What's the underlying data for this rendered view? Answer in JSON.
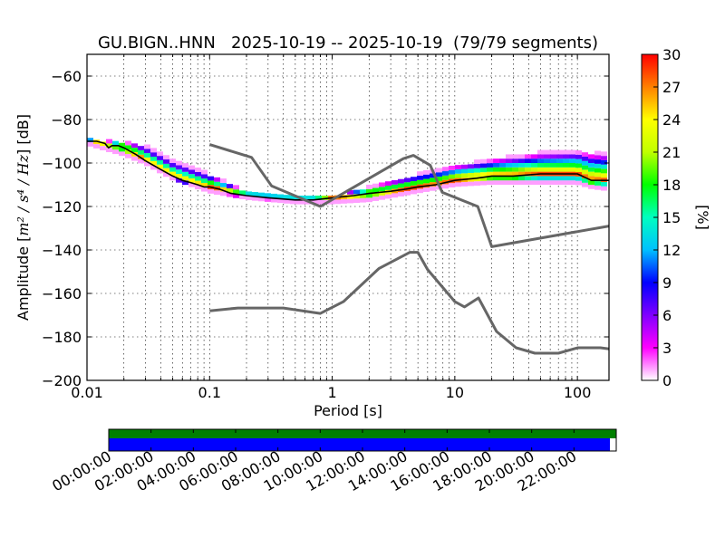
{
  "chart_data": [
    {
      "type": "heatmap",
      "title": "GU.BIGN..HNN   2025-10-19 -- 2025-10-19  (79/79 segments)",
      "xlabel": "Period [s]",
      "ylabel": "Amplitude [m²/s⁴/Hz] [dB]",
      "ylabel_parts": {
        "prefix": "Amplitude [",
        "math": "m² / s⁴ / Hz",
        "suffix": "] [dB]"
      },
      "xscale": "log",
      "xlim": [
        0.01,
        181
      ],
      "ylim": [
        -200,
        -50
      ],
      "xticks": [
        0.01,
        0.1,
        1,
        10,
        100
      ],
      "xtick_labels": [
        "0.01",
        "0.1",
        "1",
        "10",
        "100"
      ],
      "yticks": [
        -200,
        -180,
        -160,
        -140,
        -120,
        -100,
        -80,
        -60
      ],
      "ytick_labels": [
        "−200",
        "−180",
        "−160",
        "−140",
        "−120",
        "−100",
        "−80",
        "−60"
      ],
      "grid": true,
      "colorbar": {
        "label": "[%]",
        "range": [
          0,
          30
        ],
        "ticks": [
          0,
          3,
          6,
          9,
          12,
          15,
          18,
          21,
          24,
          27,
          30
        ],
        "tick_labels": [
          "0",
          "3",
          "6",
          "9",
          "12",
          "15",
          "18",
          "21",
          "24",
          "27",
          "30"
        ],
        "colormap_stops": [
          "#ffffff",
          "#ff00ff",
          "#8000ff",
          "#0000ff",
          "#00c0ff",
          "#00ffc0",
          "#00ff00",
          "#c0ff00",
          "#ffff00",
          "#ff8000",
          "#ff0000"
        ]
      },
      "series": [
        {
          "name": "PPD mode / median line",
          "color": "#000000",
          "x": [
            0.01,
            0.012,
            0.014,
            0.015,
            0.016,
            0.018,
            0.02,
            0.025,
            0.03,
            0.04,
            0.05,
            0.06,
            0.07,
            0.08,
            0.09,
            0.1,
            0.12,
            0.15,
            0.2,
            0.3,
            0.5,
            0.7,
            1.0,
            1.5,
            2,
            3,
            4,
            5,
            7,
            10,
            15,
            20,
            30,
            50,
            70,
            100,
            130,
            180
          ],
          "y": [
            -90,
            -90,
            -91,
            -93,
            -92,
            -92,
            -93,
            -96,
            -99,
            -103,
            -106,
            -108,
            -109,
            -110,
            -111,
            -111,
            -112,
            -114,
            -115,
            -116,
            -117,
            -117,
            -116,
            -115,
            -114,
            -113,
            -112,
            -111,
            -110,
            -108,
            -107,
            -106,
            -106,
            -105,
            -105,
            -105,
            -108,
            -108
          ]
        },
        {
          "name": "NHNM (new high noise model)",
          "color": "#666666",
          "x": [
            0.1,
            0.22,
            0.32,
            0.8,
            3.8,
            4.6,
            6.3,
            7.9,
            15.4,
            20.0,
            181
          ],
          "y": [
            -91.5,
            -97.4,
            -110.5,
            -120.0,
            -98.0,
            -96.5,
            -101.0,
            -113.5,
            -120.0,
            -138.5,
            -129
          ]
        },
        {
          "name": "NLNM (new low noise model)",
          "color": "#666666",
          "x": [
            0.1,
            0.17,
            0.4,
            0.8,
            1.24,
            2.4,
            4.3,
            5.0,
            6.0,
            10.0,
            12.0,
            15.6,
            21.9,
            31.6,
            45.0,
            70.0,
            101.0,
            154.0,
            181
          ],
          "y": [
            -168.0,
            -166.7,
            -166.7,
            -169.2,
            -163.7,
            -148.6,
            -141.1,
            -141.1,
            -149.0,
            -163.8,
            -166.2,
            -162.1,
            -177.5,
            -185.0,
            -187.5,
            -187.5,
            -185.0,
            -185.0,
            -185.5
          ]
        }
      ],
      "heatmap_band": {
        "description": "probability density cells along the median curve",
        "upper_envelope_x": [
          0.01,
          0.02,
          0.03,
          0.05,
          0.1,
          0.2,
          0.5,
          1,
          2,
          5,
          10,
          20,
          50,
          100,
          130,
          180
        ],
        "upper_envelope_y": [
          -89,
          -90,
          -92,
          -99,
          -105,
          -113,
          -115,
          -115,
          -111,
          -105,
          -101,
          -98,
          -95,
          -94,
          -95,
          -95
        ],
        "lower_envelope_x": [
          0.01,
          0.02,
          0.03,
          0.05,
          0.1,
          0.2,
          0.5,
          1,
          2,
          5,
          10,
          20,
          50,
          100,
          130,
          180
        ],
        "lower_envelope_y": [
          -91,
          -96,
          -100,
          -107,
          -113,
          -116,
          -118,
          -118,
          -117,
          -113,
          -110,
          -109,
          -109,
          -109,
          -111,
          -112
        ]
      }
    },
    {
      "type": "bar",
      "title": "data availability",
      "xlabel": "",
      "x_tick_labels": [
        "00:00:00",
        "02:00:00",
        "04:00:00",
        "06:00:00",
        "08:00:00",
        "10:00:00",
        "12:00:00",
        "14:00:00",
        "16:00:00",
        "18:00:00",
        "20:00:00",
        "22:00:00"
      ],
      "x_range_hours": [
        0,
        24
      ],
      "series": [
        {
          "name": "data coverage",
          "color": "#008000",
          "start_hour": 0,
          "end_hour": 24
        },
        {
          "name": "segments used",
          "color": "#0000ff",
          "start_hour": 0,
          "end_hour": 23.7
        }
      ]
    }
  ]
}
